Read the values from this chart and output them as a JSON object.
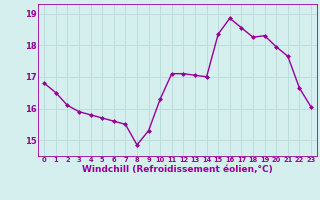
{
  "x": [
    0,
    1,
    2,
    3,
    4,
    5,
    6,
    7,
    8,
    9,
    10,
    11,
    12,
    13,
    14,
    15,
    16,
    17,
    18,
    19,
    20,
    21,
    22,
    23
  ],
  "y": [
    16.8,
    16.5,
    16.1,
    15.9,
    15.8,
    15.7,
    15.6,
    15.5,
    14.85,
    15.3,
    16.3,
    17.1,
    17.1,
    17.05,
    17.0,
    18.35,
    18.85,
    18.55,
    18.25,
    18.3,
    17.95,
    17.65,
    16.65,
    16.05
  ],
  "line_color": "#990099",
  "marker": "D",
  "marker_size": 2.0,
  "line_width": 1.0,
  "xlabel": "Windchill (Refroidissement éolien,°C)",
  "xlabel_fontsize": 6.5,
  "ylim": [
    14.5,
    19.3
  ],
  "yticks": [
    15,
    16,
    17,
    18,
    19
  ],
  "xticks": [
    0,
    1,
    2,
    3,
    4,
    5,
    6,
    7,
    8,
    9,
    10,
    11,
    12,
    13,
    14,
    15,
    16,
    17,
    18,
    19,
    20,
    21,
    22,
    23
  ],
  "xtick_fontsize": 4.8,
  "ytick_fontsize": 6.0,
  "bg_color": "#d5eeee",
  "grid_color": "#bbdddd",
  "title": ""
}
